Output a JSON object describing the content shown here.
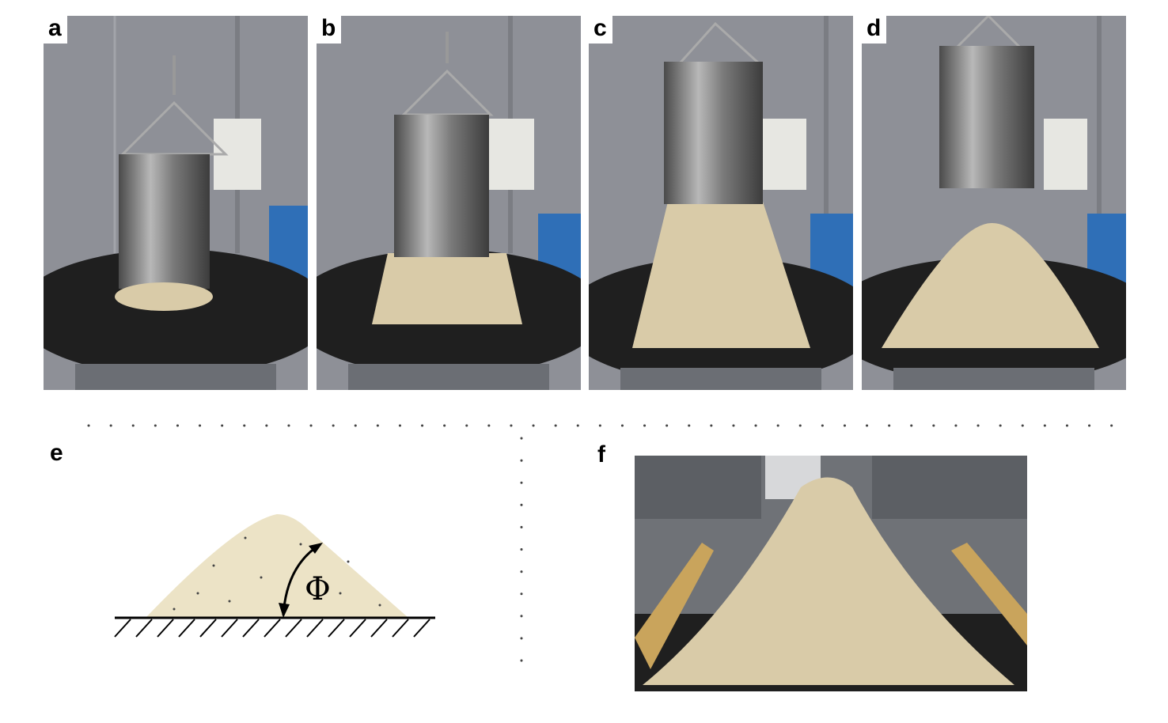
{
  "panels": [
    {
      "label": "a",
      "stage": "cylinder-lowered"
    },
    {
      "label": "b",
      "stage": "cylinder-lifting"
    },
    {
      "label": "c",
      "stage": "cylinder-lifted-flowing"
    },
    {
      "label": "d",
      "stage": "pile-formed"
    }
  ],
  "sketch": {
    "label": "e",
    "symbol": "Φ"
  },
  "photo_f": {
    "label": "f"
  },
  "colors": {
    "pile_fill": "#ece3c6",
    "chips": "#d9cba8",
    "tent": "#8e9097",
    "steel": "#8a8a8a",
    "disk": "#1f1f1f",
    "tank": "#2f6fb7"
  }
}
